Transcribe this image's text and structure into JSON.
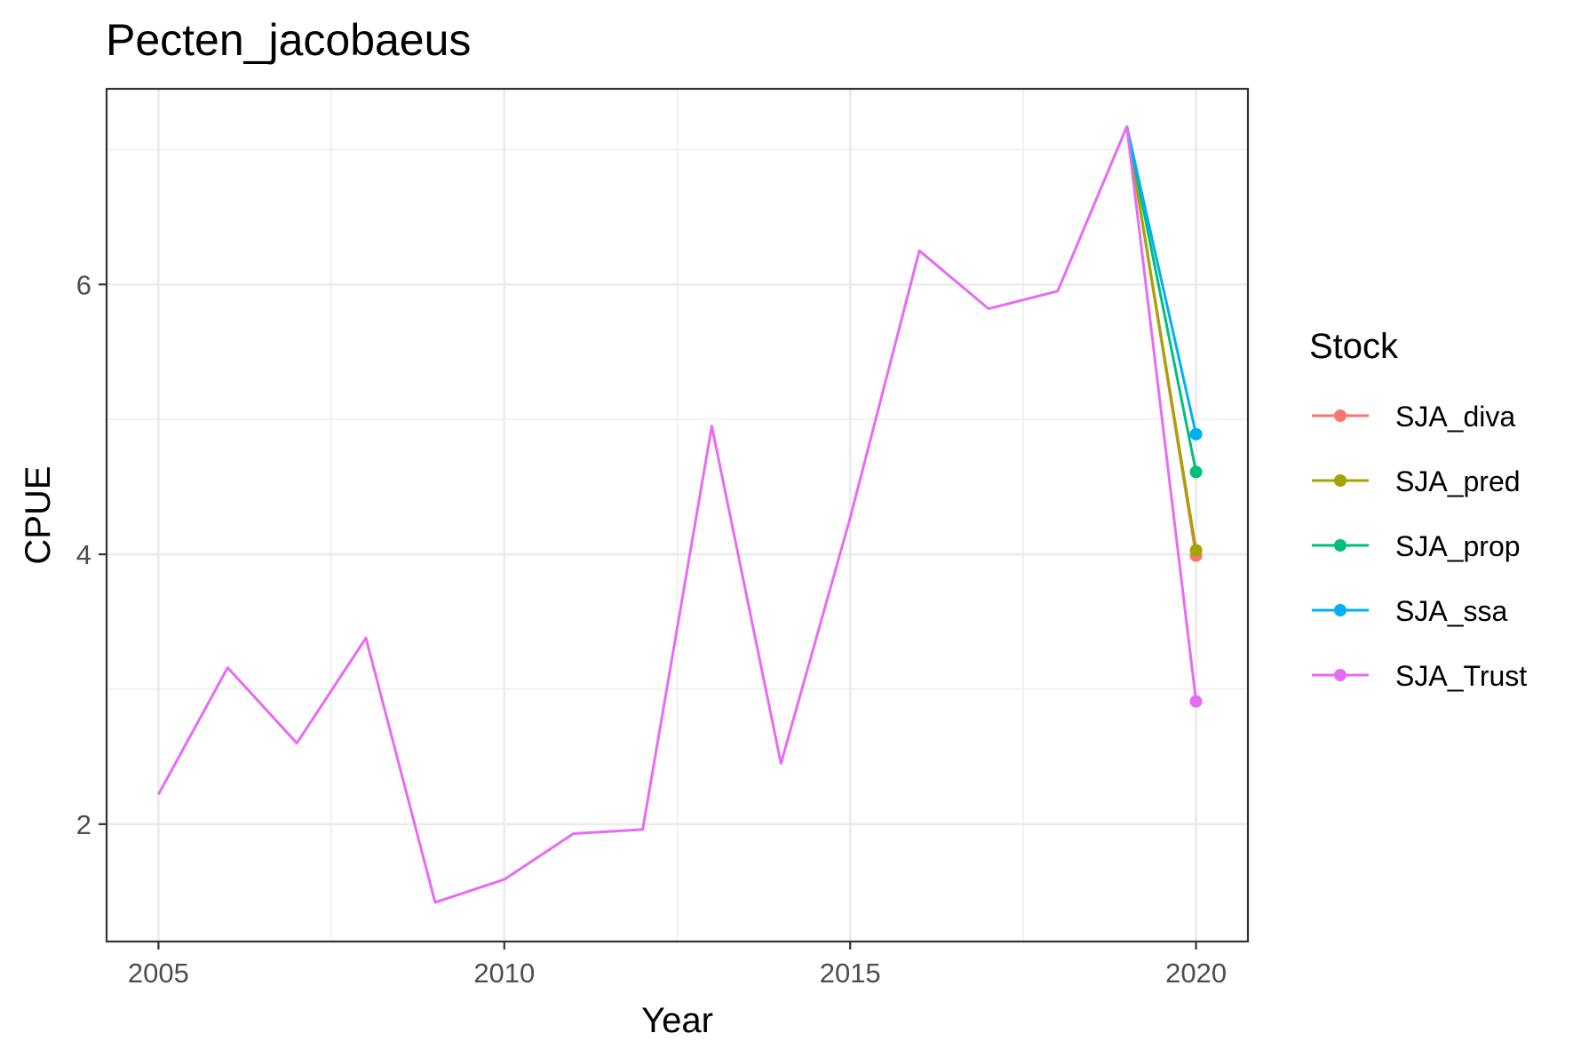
{
  "chart_data": {
    "type": "line",
    "title": "Pecten_jacobaeus",
    "xlabel": "Year",
    "ylabel": "CPUE",
    "xlim": [
      2004.25,
      2020.75
    ],
    "ylim": [
      1.13,
      7.45
    ],
    "x_ticks": [
      2005,
      2010,
      2015,
      2020
    ],
    "y_ticks": [
      2,
      4,
      6
    ],
    "x_tick_labels": [
      "2005",
      "2010",
      "2015",
      "2020"
    ],
    "y_tick_labels": [
      "2",
      "4",
      "6"
    ],
    "grid": true,
    "legend": {
      "title": "Stock",
      "position": "right"
    },
    "series": [
      {
        "name": "SJA_diva",
        "color": "#F8766D",
        "x": [
          2019,
          2020
        ],
        "y": [
          7.17,
          3.99
        ],
        "points": [
          2020
        ]
      },
      {
        "name": "SJA_pred",
        "color": "#A3A500",
        "x": [
          2019,
          2020
        ],
        "y": [
          7.17,
          4.03
        ],
        "points": [
          2020
        ]
      },
      {
        "name": "SJA_prop",
        "color": "#00BF7D",
        "x": [
          2019,
          2020
        ],
        "y": [
          7.17,
          4.61
        ],
        "points": [
          2020
        ]
      },
      {
        "name": "SJA_ssa",
        "color": "#00B0F6",
        "x": [
          2019,
          2020
        ],
        "y": [
          7.17,
          4.89
        ],
        "points": [
          2020
        ]
      },
      {
        "name": "SJA_Trust",
        "color": "#E76BF3",
        "x": [
          2005,
          2006,
          2007,
          2008,
          2009,
          2010,
          2011,
          2012,
          2013,
          2014,
          2015,
          2016,
          2017,
          2018,
          2019,
          2020
        ],
        "y": [
          2.22,
          3.16,
          2.6,
          3.38,
          1.42,
          1.59,
          1.93,
          1.96,
          4.95,
          2.45,
          4.27,
          6.25,
          5.82,
          5.95,
          7.17,
          2.91
        ],
        "points": [
          2020
        ]
      }
    ]
  }
}
